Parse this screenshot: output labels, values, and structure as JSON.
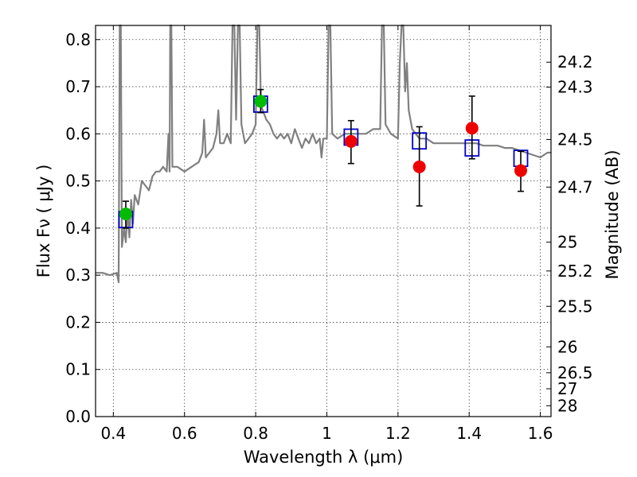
{
  "chart_data": {
    "type": "scatter",
    "xlabel": "Wavelength  λ (μm)",
    "ylabel": "Flux  Fν  ( μJy )",
    "ylabel_right": "Magnitude (AB)",
    "xlim": [
      0.35,
      1.63
    ],
    "ylim": [
      0.0,
      0.83
    ],
    "grid": true,
    "x_ticks": [
      "0.4",
      "0.6",
      "0.8",
      "1",
      "1.2",
      "1.4",
      "1.6"
    ],
    "x_tick_values": [
      0.4,
      0.6,
      0.8,
      1.0,
      1.2,
      1.4,
      1.6
    ],
    "y_ticks": [
      "0.0",
      "0.1",
      "0.2",
      "0.3",
      "0.4",
      "0.5",
      "0.6",
      "0.7",
      "0.8"
    ],
    "y_tick_values": [
      0.0,
      0.1,
      0.2,
      0.3,
      0.4,
      0.5,
      0.6,
      0.7,
      0.8
    ],
    "right_ticks": [
      {
        "label": "24.2",
        "flux": 0.752
      },
      {
        "label": "24.3",
        "flux": 0.699
      },
      {
        "label": "24.5",
        "flux": 0.588
      },
      {
        "label": "24.7",
        "flux": 0.487
      },
      {
        "label": "25",
        "flux": 0.37
      },
      {
        "label": "25.2",
        "flux": 0.309
      },
      {
        "label": "25.5",
        "flux": 0.234
      },
      {
        "label": "26",
        "flux": 0.148
      },
      {
        "label": "26.5",
        "flux": 0.093
      },
      {
        "label": "27",
        "flux": 0.059
      },
      {
        "label": "28",
        "flux": 0.023
      }
    ],
    "spectrum": {
      "color": "#808080",
      "points": [
        [
          0.35,
          0.305
        ],
        [
          0.37,
          0.305
        ],
        [
          0.39,
          0.3
        ],
        [
          0.41,
          0.305
        ],
        [
          0.415,
          0.285
        ],
        [
          0.418,
          0.83
        ],
        [
          0.421,
          0.83
        ],
        [
          0.424,
          0.36
        ],
        [
          0.43,
          0.4
        ],
        [
          0.435,
          0.37
        ],
        [
          0.44,
          0.44
        ],
        [
          0.445,
          0.38
        ],
        [
          0.45,
          0.46
        ],
        [
          0.455,
          0.41
        ],
        [
          0.46,
          0.47
        ],
        [
          0.47,
          0.45
        ],
        [
          0.48,
          0.5
        ],
        [
          0.49,
          0.49
        ],
        [
          0.5,
          0.48
        ],
        [
          0.51,
          0.51
        ],
        [
          0.52,
          0.52
        ],
        [
          0.53,
          0.52
        ],
        [
          0.54,
          0.53
        ],
        [
          0.55,
          0.52
        ],
        [
          0.555,
          0.6
        ],
        [
          0.558,
          0.52
        ],
        [
          0.56,
          0.83
        ],
        [
          0.563,
          0.83
        ],
        [
          0.566,
          0.53
        ],
        [
          0.58,
          0.53
        ],
        [
          0.6,
          0.52
        ],
        [
          0.62,
          0.53
        ],
        [
          0.64,
          0.54
        ],
        [
          0.65,
          0.56
        ],
        [
          0.655,
          0.63
        ],
        [
          0.66,
          0.55
        ],
        [
          0.67,
          0.56
        ],
        [
          0.68,
          0.57
        ],
        [
          0.69,
          0.6
        ],
        [
          0.695,
          0.65
        ],
        [
          0.7,
          0.58
        ],
        [
          0.71,
          0.58
        ],
        [
          0.72,
          0.6
        ],
        [
          0.73,
          0.58
        ],
        [
          0.735,
          0.83
        ],
        [
          0.74,
          0.83
        ],
        [
          0.745,
          0.63
        ],
        [
          0.75,
          0.83
        ],
        [
          0.755,
          0.83
        ],
        [
          0.76,
          0.62
        ],
        [
          0.77,
          0.58
        ],
        [
          0.78,
          0.59
        ],
        [
          0.79,
          0.6
        ],
        [
          0.8,
          0.62
        ],
        [
          0.805,
          0.83
        ],
        [
          0.81,
          0.83
        ],
        [
          0.815,
          0.66
        ],
        [
          0.82,
          0.65
        ],
        [
          0.83,
          0.63
        ],
        [
          0.84,
          0.62
        ],
        [
          0.85,
          0.6
        ],
        [
          0.86,
          0.59
        ],
        [
          0.87,
          0.6
        ],
        [
          0.88,
          0.59
        ],
        [
          0.89,
          0.6
        ],
        [
          0.9,
          0.58
        ],
        [
          0.91,
          0.61
        ],
        [
          0.92,
          0.59
        ],
        [
          0.93,
          0.57
        ],
        [
          0.94,
          0.59
        ],
        [
          0.95,
          0.58
        ],
        [
          0.96,
          0.6
        ],
        [
          0.97,
          0.58
        ],
        [
          0.98,
          0.59
        ],
        [
          0.985,
          0.55
        ],
        [
          0.99,
          0.59
        ],
        [
          1.0,
          0.59
        ],
        [
          1.005,
          0.83
        ],
        [
          1.01,
          0.83
        ],
        [
          1.015,
          0.6
        ],
        [
          1.03,
          0.59
        ],
        [
          1.05,
          0.6
        ],
        [
          1.07,
          0.6
        ],
        [
          1.09,
          0.6
        ],
        [
          1.11,
          0.6
        ],
        [
          1.13,
          0.61
        ],
        [
          1.15,
          0.61
        ],
        [
          1.155,
          0.83
        ],
        [
          1.16,
          0.83
        ],
        [
          1.165,
          0.62
        ],
        [
          1.18,
          0.6
        ],
        [
          1.2,
          0.59
        ],
        [
          1.205,
          0.75
        ],
        [
          1.21,
          0.83
        ],
        [
          1.215,
          0.83
        ],
        [
          1.22,
          0.69
        ],
        [
          1.225,
          0.75
        ],
        [
          1.23,
          0.65
        ],
        [
          1.24,
          0.61
        ],
        [
          1.26,
          0.59
        ],
        [
          1.28,
          0.59
        ],
        [
          1.3,
          0.58
        ],
        [
          1.32,
          0.58
        ],
        [
          1.34,
          0.58
        ],
        [
          1.36,
          0.58
        ],
        [
          1.38,
          0.58
        ],
        [
          1.4,
          0.58
        ],
        [
          1.42,
          0.58
        ],
        [
          1.44,
          0.575
        ],
        [
          1.46,
          0.575
        ],
        [
          1.48,
          0.575
        ],
        [
          1.5,
          0.57
        ],
        [
          1.52,
          0.57
        ],
        [
          1.54,
          0.565
        ],
        [
          1.56,
          0.56
        ],
        [
          1.58,
          0.555
        ],
        [
          1.6,
          0.55
        ],
        [
          1.62,
          0.56
        ],
        [
          1.63,
          0.56
        ]
      ]
    },
    "series": [
      {
        "marker": "square",
        "color": "#0000cc",
        "points": [
          {
            "x": 0.435,
            "y": 0.418
          },
          {
            "x": 0.814,
            "y": 0.663
          },
          {
            "x": 1.068,
            "y": 0.593
          },
          {
            "x": 1.26,
            "y": 0.585
          },
          {
            "x": 1.408,
            "y": 0.57
          },
          {
            "x": 1.545,
            "y": 0.548
          }
        ]
      },
      {
        "marker": "circle",
        "color": "#00bb00",
        "points": [
          {
            "x": 0.435,
            "y": 0.43,
            "err_low": 0.4,
            "err_high": 0.457
          },
          {
            "x": 0.814,
            "y": 0.669,
            "err_low": 0.645,
            "err_high": 0.694
          }
        ]
      },
      {
        "marker": "circle",
        "color": "#ee0000",
        "points": [
          {
            "x": 1.068,
            "y": 0.584,
            "err_low": 0.537,
            "err_high": 0.628
          },
          {
            "x": 1.26,
            "y": 0.53,
            "err_low": 0.447,
            "err_high": 0.615
          },
          {
            "x": 1.408,
            "y": 0.612,
            "err_low": 0.547,
            "err_high": 0.68
          },
          {
            "x": 1.545,
            "y": 0.522,
            "err_low": 0.478,
            "err_high": 0.563
          }
        ]
      }
    ]
  }
}
